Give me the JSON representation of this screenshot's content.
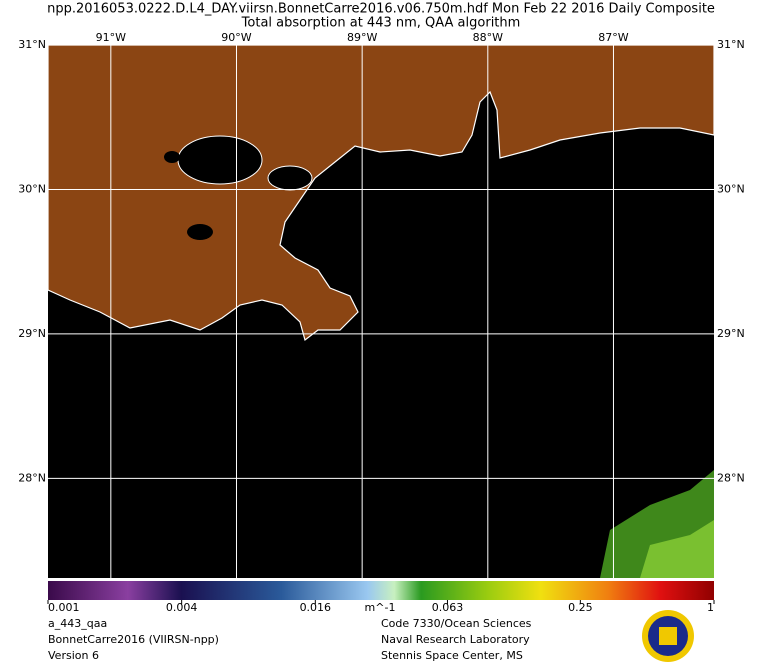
{
  "header": {
    "line1": "npp.2016053.0222.D.L4_DAY.viirsn.BonnetCarre2016.v06.750m.hdf   Mon Feb 22 2016 Daily Composite",
    "line2": "Total absorption at 443 nm, QAA algorithm"
  },
  "map": {
    "lat_range": [
      27.31,
      31
    ],
    "lon_range": [
      -91.5,
      -86.2
    ],
    "lat_ticks": [
      {
        "value": 31,
        "label": "31°N"
      },
      {
        "value": 30,
        "label": "30°N"
      },
      {
        "value": 29,
        "label": "29°N"
      },
      {
        "value": 28,
        "label": "28°N"
      }
    ],
    "lon_ticks": [
      {
        "value": -91,
        "label": "91°W"
      },
      {
        "value": -90,
        "label": "90°W"
      },
      {
        "value": -89,
        "label": "89°W"
      },
      {
        "value": -88,
        "label": "88°W"
      },
      {
        "value": -87,
        "label": "87°W"
      }
    ]
  },
  "colorbar": {
    "range": [
      0.001,
      1
    ],
    "log_scale": true,
    "ticks": [
      0.001,
      0.004,
      0.016,
      0.063,
      0.25,
      1
    ],
    "unit": "m^-1"
  },
  "footer": {
    "left": [
      "a_443_qaa",
      "BonnetCarre2016 (VIIRSN-npp)",
      "Version 6"
    ],
    "center": [
      "Code 7330/Ocean Sciences",
      "Naval Research Laboratory",
      "Stennis Space Center, MS"
    ]
  }
}
